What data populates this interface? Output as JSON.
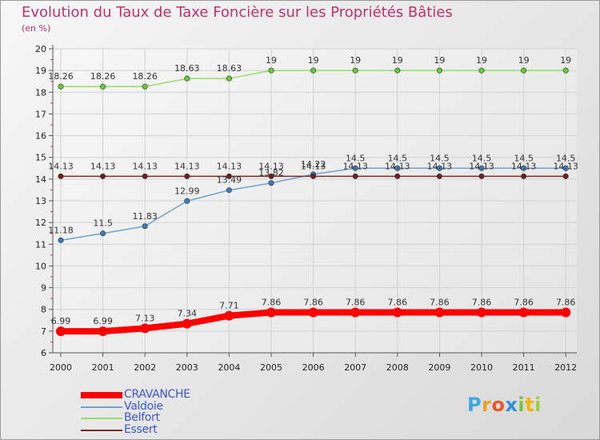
{
  "chart_data": {
    "type": "line",
    "title": "Evolution du Taux de Taxe Foncière sur les Propriétés Bâties",
    "ylabel": "(en %)",
    "ylim": [
      6,
      20
    ],
    "yticks": [
      "6",
      "7",
      "8",
      "9",
      "10",
      "11",
      "12",
      "13",
      "14",
      "15",
      "16",
      "17",
      "18",
      "19",
      "20"
    ],
    "categories": [
      "2000",
      "2001",
      "2002",
      "2003",
      "2004",
      "2005",
      "2006",
      "2007",
      "2008",
      "2009",
      "2010",
      "2011",
      "2012"
    ],
    "series": [
      {
        "name": "CRAVANCHE",
        "color": "#ff0000",
        "marker_color": "#ff0000",
        "width": 8,
        "values": [
          6.99,
          6.99,
          7.13,
          7.34,
          7.71,
          7.86,
          7.86,
          7.86,
          7.86,
          7.86,
          7.86,
          7.86,
          7.86
        ],
        "labels": [
          "6.99",
          "6.99",
          "7.13",
          "7.34",
          "7.71",
          "7.86",
          "7.86",
          "7.86",
          "7.86",
          "7.86",
          "7.86",
          "7.86",
          "7.86"
        ]
      },
      {
        "name": "Valdoie",
        "color": "#6fa3d1",
        "marker_color": "#3d7ab8",
        "width": 1.5,
        "values": [
          11.18,
          11.5,
          11.83,
          12.99,
          13.49,
          13.82,
          14.22,
          14.5,
          14.5,
          14.5,
          14.5,
          14.5,
          14.5
        ],
        "labels": [
          "11.18",
          "11.5",
          "11.83",
          "12.99",
          "13.49",
          "13.82",
          "14.22",
          "14.5",
          "14.5",
          "14.5",
          "14.5",
          "14.5",
          "14.5"
        ]
      },
      {
        "name": "Belfort",
        "color": "#99dd66",
        "marker_color": "#66cc33",
        "width": 1.5,
        "values": [
          18.26,
          18.26,
          18.26,
          18.63,
          18.63,
          19,
          19,
          19,
          19,
          19,
          19,
          19,
          19
        ],
        "labels": [
          "18.26",
          "18.26",
          "18.26",
          "18.63",
          "18.63",
          "19",
          "19",
          "19",
          "19",
          "19",
          "19",
          "19",
          "19"
        ]
      },
      {
        "name": "Essert",
        "color": "#7a2a2a",
        "marker_color": "#6b1f1f",
        "width": 1.5,
        "values": [
          14.13,
          14.13,
          14.13,
          14.13,
          14.13,
          14.13,
          14.13,
          14.13,
          14.13,
          14.13,
          14.13,
          14.13,
          14.13
        ],
        "labels": [
          "14.13",
          "14.13",
          "14.13",
          "14.13",
          "14.13",
          "14.13",
          "14.13",
          "14.13",
          "14.13",
          "14.13",
          "14.13",
          "14.13",
          "14.13"
        ]
      }
    ],
    "legend_position": "bottom-left"
  },
  "logo": {
    "text": "Proxiti"
  }
}
